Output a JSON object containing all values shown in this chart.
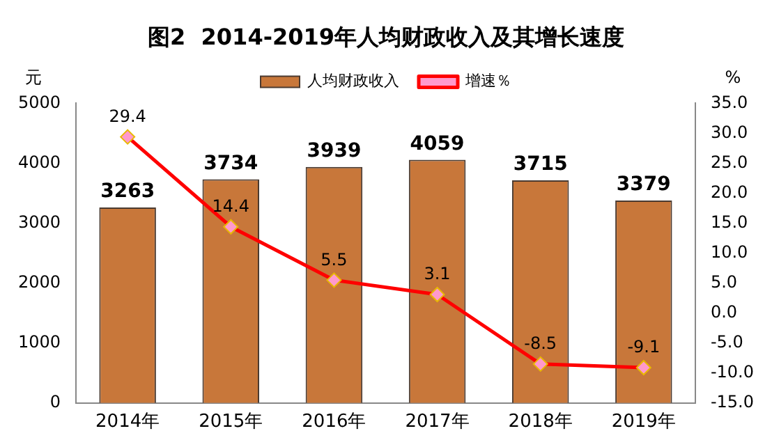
{
  "chart_data": {
    "type": "bar",
    "title": "图2  2014-2019年人均财政收入及其增长速度",
    "ylabel": "元",
    "y2label": "%",
    "categories": [
      "2014年",
      "2015年",
      "2016年",
      "2017年",
      "2018年",
      "2019年"
    ],
    "series": [
      {
        "name": "人均财政收入",
        "color": "#c8773a",
        "values": [
          3263,
          3734,
          3939,
          4059,
          3715,
          3379
        ]
      },
      {
        "name": "增速％",
        "type": "line",
        "axis": "y2",
        "color": "#ff0000",
        "marker": "diamond",
        "values": [
          29.4,
          14.4,
          5.5,
          3.1,
          -8.5,
          -9.1
        ]
      }
    ],
    "ylim": [
      0,
      5000
    ],
    "yticks": [
      0,
      1000,
      2000,
      3000,
      4000,
      5000
    ],
    "y2lim": [
      -15,
      35
    ],
    "y2ticks": [
      {
        "value": -15,
        "label": "-15.0"
      },
      {
        "value": -10,
        "label": "-10.0"
      },
      {
        "value": -5,
        "label": "-5.0"
      },
      {
        "value": 0,
        "label": "0.0"
      },
      {
        "value": 5,
        "label": "5.0"
      },
      {
        "value": 10,
        "label": "10.0"
      },
      {
        "value": 15,
        "label": "15.0"
      },
      {
        "value": 20,
        "label": "20.0"
      },
      {
        "value": 25,
        "label": "25.0"
      },
      {
        "value": 30,
        "label": "30.0"
      },
      {
        "value": 35,
        "label": "35.0"
      }
    ],
    "data_labels": true,
    "legend": "top",
    "grid": false
  }
}
